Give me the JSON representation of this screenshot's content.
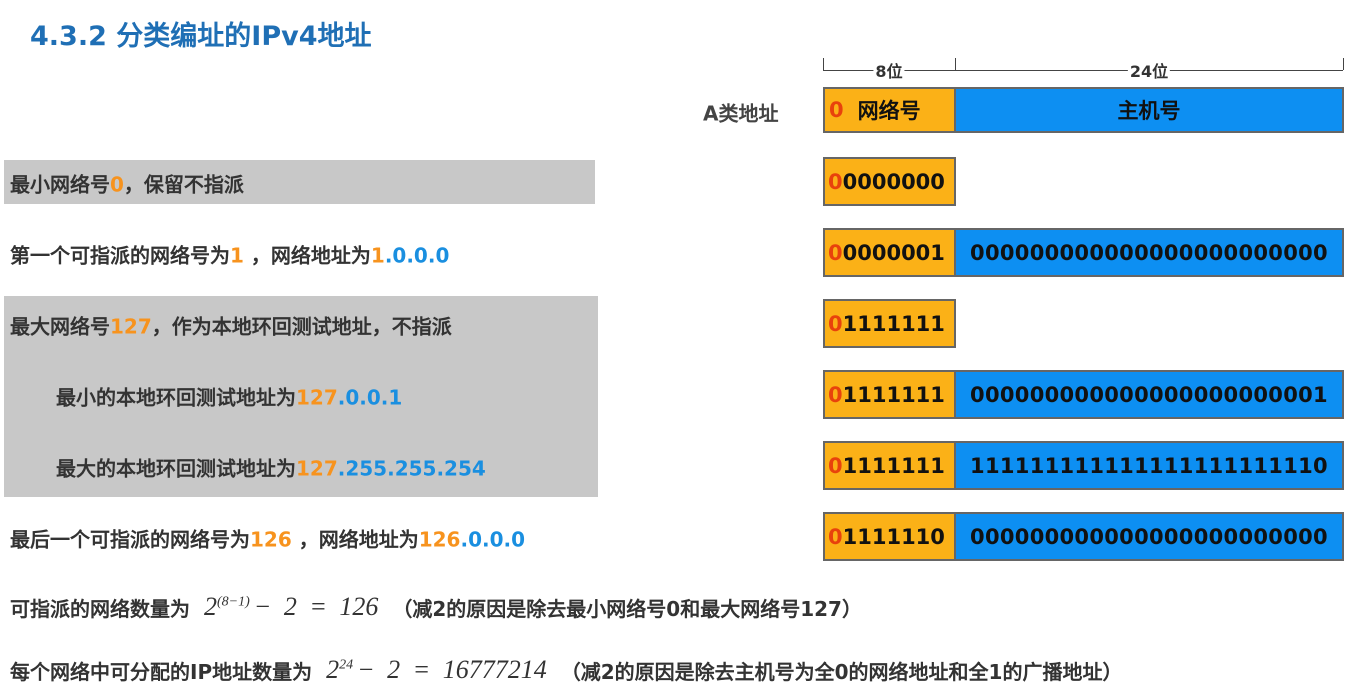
{
  "title": "4.3.2 分类编址的IPv4地址",
  "header": {
    "label": "A类地址",
    "net_width": "8位",
    "host_width": "24位",
    "lead": "0",
    "net": "网络号",
    "host": "主机号"
  },
  "rows": [
    {
      "text": [
        {
          "text": "最小网络号"
        },
        {
          "text": "0",
          "color": "#f7931e"
        },
        {
          "text": "，保留不指派"
        }
      ],
      "lead": "0",
      "net": "0000000"
    },
    {
      "text": [
        {
          "text": "第一个可指派的网络号为"
        },
        {
          "text": "1",
          "color": "#f7931e"
        },
        {
          "text": " ，网络地址为"
        },
        {
          "text": "1",
          "color": "#f7931e"
        },
        {
          "text": ".0.0.0",
          "color": "#1a8fe0"
        }
      ],
      "lead": "0",
      "net": "0000001",
      "host": "000000000000000000000000"
    },
    {
      "text": [
        {
          "text": "最大网络号"
        },
        {
          "text": "127",
          "color": "#f7931e"
        },
        {
          "text": "，作为本地环回测试地址，不指派"
        }
      ],
      "lead": "0",
      "net": "1111111"
    },
    {
      "text": [
        {
          "text": "最小的本地环回测试地址为"
        },
        {
          "text": "127",
          "color": "#f7931e"
        },
        {
          "text": ".0.0.1",
          "color": "#1a8fe0"
        }
      ],
      "lead": "0",
      "net": "1111111",
      "host": "000000000000000000000001"
    },
    {
      "text": [
        {
          "text": "最大的本地环回测试地址为"
        },
        {
          "text": "127",
          "color": "#f7931e"
        },
        {
          "text": ".255.255.254",
          "color": "#1a8fe0"
        }
      ],
      "lead": "0",
      "net": "1111111",
      "host": "111111111111111111111110"
    },
    {
      "text": [
        {
          "text": "最后一个可指派的网络号为"
        },
        {
          "text": "126",
          "color": "#f7931e"
        },
        {
          "text": " ，网络地址为"
        },
        {
          "text": "126",
          "color": "#f7931e"
        },
        {
          "text": ".0.0.0",
          "color": "#1a8fe0"
        }
      ],
      "lead": "0",
      "net": "1111110",
      "host": "000000000000000000000000"
    }
  ],
  "formulas": [
    {
      "label": "可指派的网络数量为",
      "base": "2",
      "exponent": "(8−1)",
      "rest": "− 2 = 126",
      "note": "（减2的原因是除去最小网络号0和最大网络号127）"
    },
    {
      "label": "每个网络中可分配的IP地址数量为",
      "base": "2",
      "exponent": "24",
      "rest": "− 2 = 16777214",
      "note": "（减2的原因是除去主机号为全0的网络地址和全1的广播地址）"
    }
  ]
}
